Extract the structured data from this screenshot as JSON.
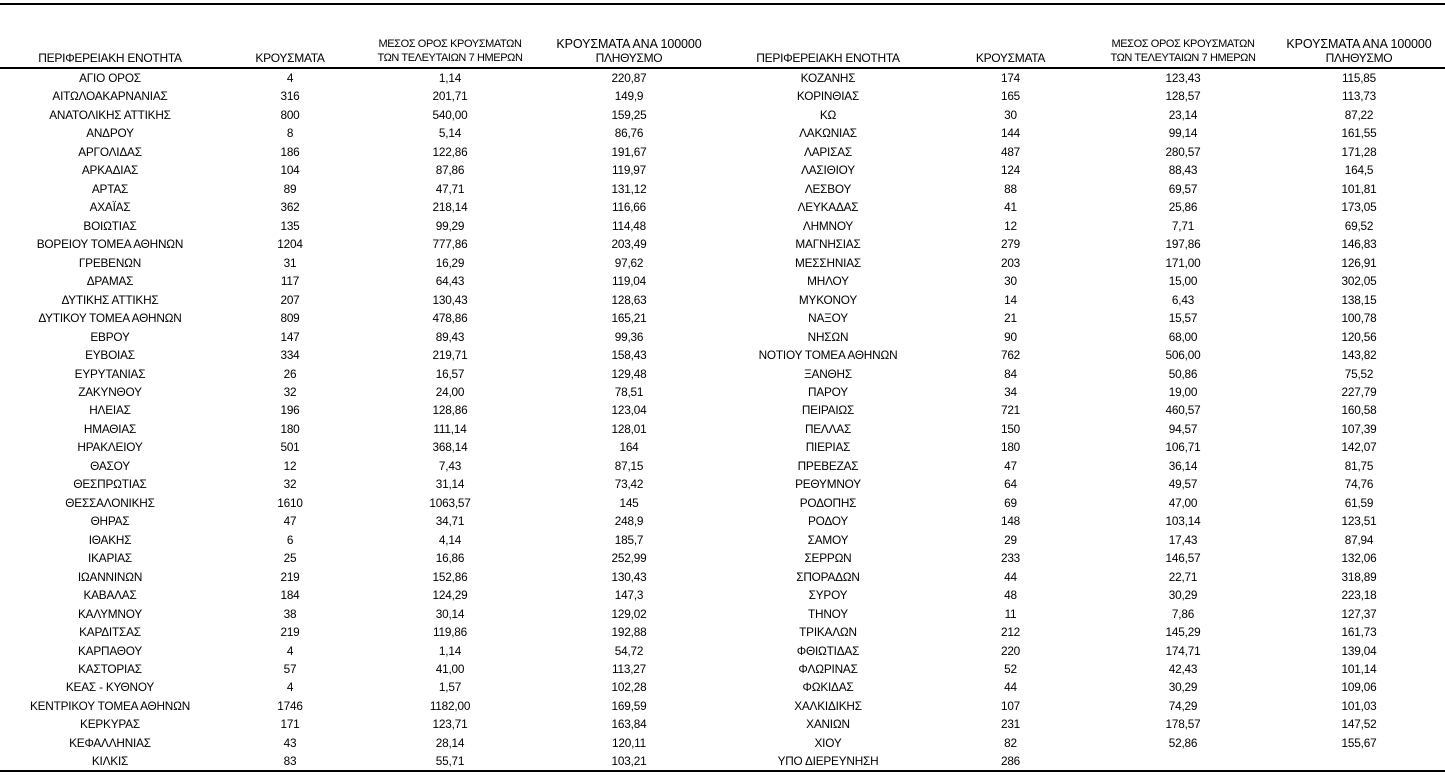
{
  "colors": {
    "text": "#000000",
    "background": "#ffffff",
    "rule": "#000000"
  },
  "table": {
    "headers": {
      "region": "ΠΕΡΙΦΕΡΕΙΑΚΗ ΕΝΟΤΗΤΑ",
      "cases": "ΚΡΟΥΣΜΑΤΑ",
      "avg7_line1": "ΜΕΣΟΣ ΟΡΟΣ ΚΡΟΥΣΜΑΤΩΝ",
      "avg7_line2": "ΤΩΝ ΤΕΛΕΥΤΑΙΩΝ 7 ΗΜΕΡΩΝ",
      "per100k_line1": "ΚΡΟΥΣΜΑΤΑ ΑΝΑ 100000",
      "per100k_line2": "ΠΛΗΘΥΣΜΟ"
    },
    "left_rows": [
      [
        "ΑΓΙΟ ΟΡΟΣ",
        "4",
        "1,14",
        "220,87"
      ],
      [
        "ΑΙΤΩΛΟΑΚΑΡΝΑΝΙΑΣ",
        "316",
        "201,71",
        "149,9"
      ],
      [
        "ΑΝΑΤΟΛΙΚΗΣ ΑΤΤΙΚΗΣ",
        "800",
        "540,00",
        "159,25"
      ],
      [
        "ΑΝΔΡΟΥ",
        "8",
        "5,14",
        "86,76"
      ],
      [
        "ΑΡΓΟΛΙΔΑΣ",
        "186",
        "122,86",
        "191,67"
      ],
      [
        "ΑΡΚΑΔΙΑΣ",
        "104",
        "87,86",
        "119,97"
      ],
      [
        "ΑΡΤΑΣ",
        "89",
        "47,71",
        "131,12"
      ],
      [
        "ΑΧΑΪΑΣ",
        "362",
        "218,14",
        "116,66"
      ],
      [
        "ΒΟΙΩΤΙΑΣ",
        "135",
        "99,29",
        "114,48"
      ],
      [
        "ΒΟΡΕΙΟΥ ΤΟΜΕΑ ΑΘΗΝΩΝ",
        "1204",
        "777,86",
        "203,49"
      ],
      [
        "ΓΡΕΒΕΝΩΝ",
        "31",
        "16,29",
        "97,62"
      ],
      [
        "ΔΡΑΜΑΣ",
        "117",
        "64,43",
        "119,04"
      ],
      [
        "ΔΥΤΙΚΗΣ ΑΤΤΙΚΗΣ",
        "207",
        "130,43",
        "128,63"
      ],
      [
        "ΔΥΤΙΚΟΥ ΤΟΜΕΑ ΑΘΗΝΩΝ",
        "809",
        "478,86",
        "165,21"
      ],
      [
        "ΕΒΡΟΥ",
        "147",
        "89,43",
        "99,36"
      ],
      [
        "ΕΥΒΟΙΑΣ",
        "334",
        "219,71",
        "158,43"
      ],
      [
        "ΕΥΡΥΤΑΝΙΑΣ",
        "26",
        "16,57",
        "129,48"
      ],
      [
        "ΖΑΚΥΝΘΟΥ",
        "32",
        "24,00",
        "78,51"
      ],
      [
        "ΗΛΕΙΑΣ",
        "196",
        "128,86",
        "123,04"
      ],
      [
        "ΗΜΑΘΙΑΣ",
        "180",
        "111,14",
        "128,01"
      ],
      [
        "ΗΡΑΚΛΕΙΟΥ",
        "501",
        "368,14",
        "164"
      ],
      [
        "ΘΑΣΟΥ",
        "12",
        "7,43",
        "87,15"
      ],
      [
        "ΘΕΣΠΡΩΤΙΑΣ",
        "32",
        "31,14",
        "73,42"
      ],
      [
        "ΘΕΣΣΑΛΟΝΙΚΗΣ",
        "1610",
        "1063,57",
        "145"
      ],
      [
        "ΘΗΡΑΣ",
        "47",
        "34,71",
        "248,9"
      ],
      [
        "ΙΘΑΚΗΣ",
        "6",
        "4,14",
        "185,7"
      ],
      [
        "ΙΚΑΡΙΑΣ",
        "25",
        "16,86",
        "252,99"
      ],
      [
        "ΙΩΑΝΝΙΝΩΝ",
        "219",
        "152,86",
        "130,43"
      ],
      [
        "ΚΑΒΑΛΑΣ",
        "184",
        "124,29",
        "147,3"
      ],
      [
        "ΚΑΛΥΜΝΟΥ",
        "38",
        "30,14",
        "129,02"
      ],
      [
        "ΚΑΡΔΙΤΣΑΣ",
        "219",
        "119,86",
        "192,88"
      ],
      [
        "ΚΑΡΠΑΘΟΥ",
        "4",
        "1,14",
        "54,72"
      ],
      [
        "ΚΑΣΤΟΡΙΑΣ",
        "57",
        "41,00",
        "113,27"
      ],
      [
        "ΚΕΑΣ - ΚΥΘΝΟΥ",
        "4",
        "1,57",
        "102,28"
      ],
      [
        "ΚΕΝΤΡΙΚΟΥ ΤΟΜΕΑ ΑΘΗΝΩΝ",
        "1746",
        "1182,00",
        "169,59"
      ],
      [
        "ΚΕΡΚΥΡΑΣ",
        "171",
        "123,71",
        "163,84"
      ],
      [
        "ΚΕΦΑΛΛΗΝΙΑΣ",
        "43",
        "28,14",
        "120,11"
      ],
      [
        "ΚΙΛΚΙΣ",
        "83",
        "55,71",
        "103,21"
      ]
    ],
    "right_rows": [
      [
        "ΚΟΖΑΝΗΣ",
        "174",
        "123,43",
        "115,85"
      ],
      [
        "ΚΟΡΙΝΘΙΑΣ",
        "165",
        "128,57",
        "113,73"
      ],
      [
        "ΚΩ",
        "30",
        "23,14",
        "87,22"
      ],
      [
        "ΛΑΚΩΝΙΑΣ",
        "144",
        "99,14",
        "161,55"
      ],
      [
        "ΛΑΡΙΣΑΣ",
        "487",
        "280,57",
        "171,28"
      ],
      [
        "ΛΑΣΙΘΙΟΥ",
        "124",
        "88,43",
        "164,5"
      ],
      [
        "ΛΕΣΒΟΥ",
        "88",
        "69,57",
        "101,81"
      ],
      [
        "ΛΕΥΚΑΔΑΣ",
        "41",
        "25,86",
        "173,05"
      ],
      [
        "ΛΗΜΝΟΥ",
        "12",
        "7,71",
        "69,52"
      ],
      [
        "ΜΑΓΝΗΣΙΑΣ",
        "279",
        "197,86",
        "146,83"
      ],
      [
        "ΜΕΣΣΗΝΙΑΣ",
        "203",
        "171,00",
        "126,91"
      ],
      [
        "ΜΗΛΟΥ",
        "30",
        "15,00",
        "302,05"
      ],
      [
        "ΜΥΚΟΝΟΥ",
        "14",
        "6,43",
        "138,15"
      ],
      [
        "ΝΑΞΟΥ",
        "21",
        "15,57",
        "100,78"
      ],
      [
        "ΝΗΣΩΝ",
        "90",
        "68,00",
        "120,56"
      ],
      [
        "ΝΟΤΙΟΥ ΤΟΜΕΑ ΑΘΗΝΩΝ",
        "762",
        "506,00",
        "143,82"
      ],
      [
        "ΞΑΝΘΗΣ",
        "84",
        "50,86",
        "75,52"
      ],
      [
        "ΠΑΡΟΥ",
        "34",
        "19,00",
        "227,79"
      ],
      [
        "ΠΕΙΡΑΙΩΣ",
        "721",
        "460,57",
        "160,58"
      ],
      [
        "ΠΕΛΛΑΣ",
        "150",
        "94,57",
        "107,39"
      ],
      [
        "ΠΙΕΡΙΑΣ",
        "180",
        "106,71",
        "142,07"
      ],
      [
        "ΠΡΕΒΕΖΑΣ",
        "47",
        "36,14",
        "81,75"
      ],
      [
        "ΡΕΘΥΜΝΟΥ",
        "64",
        "49,57",
        "74,76"
      ],
      [
        "ΡΟΔΟΠΗΣ",
        "69",
        "47,00",
        "61,59"
      ],
      [
        "ΡΟΔΟΥ",
        "148",
        "103,14",
        "123,51"
      ],
      [
        "ΣΑΜΟΥ",
        "29",
        "17,43",
        "87,94"
      ],
      [
        "ΣΕΡΡΩΝ",
        "233",
        "146,57",
        "132,06"
      ],
      [
        "ΣΠΟΡΑΔΩΝ",
        "44",
        "22,71",
        "318,89"
      ],
      [
        "ΣΥΡΟΥ",
        "48",
        "30,29",
        "223,18"
      ],
      [
        "ΤΗΝΟΥ",
        "11",
        "7,86",
        "127,37"
      ],
      [
        "ΤΡΙΚΑΛΩΝ",
        "212",
        "145,29",
        "161,73"
      ],
      [
        "ΦΘΙΩΤΙΔΑΣ",
        "220",
        "174,71",
        "139,04"
      ],
      [
        "ΦΛΩΡΙΝΑΣ",
        "52",
        "42,43",
        "101,14"
      ],
      [
        "ΦΩΚΙΔΑΣ",
        "44",
        "30,29",
        "109,06"
      ],
      [
        "ΧΑΛΚΙΔΙΚΗΣ",
        "107",
        "74,29",
        "101,03"
      ],
      [
        "ΧΑΝΙΩΝ",
        "231",
        "178,57",
        "147,52"
      ],
      [
        "ΧΙΟΥ",
        "82",
        "52,86",
        "155,67"
      ],
      [
        "ΥΠΟ ΔΙΕΡΕΥΝΗΣΗ",
        "286",
        "",
        ""
      ]
    ]
  }
}
